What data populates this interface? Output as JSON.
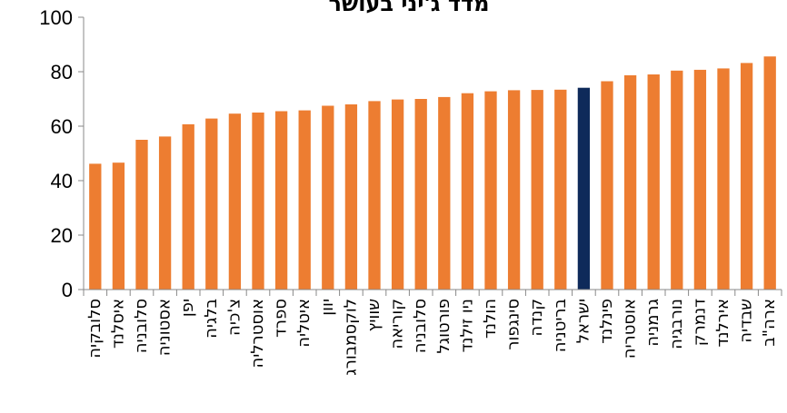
{
  "chart_data": {
    "type": "bar",
    "title": "מדד ג'יני בעושר",
    "xlabel": "",
    "ylabel": "",
    "ylim": [
      0,
      100
    ],
    "yticks": [
      0,
      20,
      40,
      60,
      80,
      100
    ],
    "grid": false,
    "categories": [
      "סלובקיה",
      "איסלנד",
      "סלובניה",
      "אסטוניה",
      "יפן",
      "בלגיה",
      "צ'כיה",
      "אוסטרליה",
      "ספרד",
      "איטליה",
      "יוון",
      "לוקסמבורג",
      "שוויץ",
      "קוריאה",
      "סלובניה",
      "פורטוגל",
      "ניו זילנד",
      "הולנד",
      "סינגפור",
      "קנדה",
      "בריטניה",
      "ישראל",
      "פינלנד",
      "אוסטריה",
      "גרמניה",
      "נורבגיה",
      "דנמרק",
      "אירלנד",
      "שבדיה",
      "ארה\"ב"
    ],
    "values": [
      46.2,
      46.6,
      55.0,
      56.2,
      60.7,
      62.8,
      64.6,
      65.0,
      65.5,
      65.8,
      67.5,
      68.0,
      69.2,
      69.8,
      70.0,
      70.7,
      72.1,
      72.8,
      73.2,
      73.3,
      73.4,
      74.1,
      76.5,
      78.7,
      79.0,
      80.4,
      80.7,
      81.2,
      83.2,
      85.6
    ],
    "highlight_index": 21,
    "colors": {
      "default": "#ED7D31",
      "highlight": "#0E2A5A"
    }
  }
}
